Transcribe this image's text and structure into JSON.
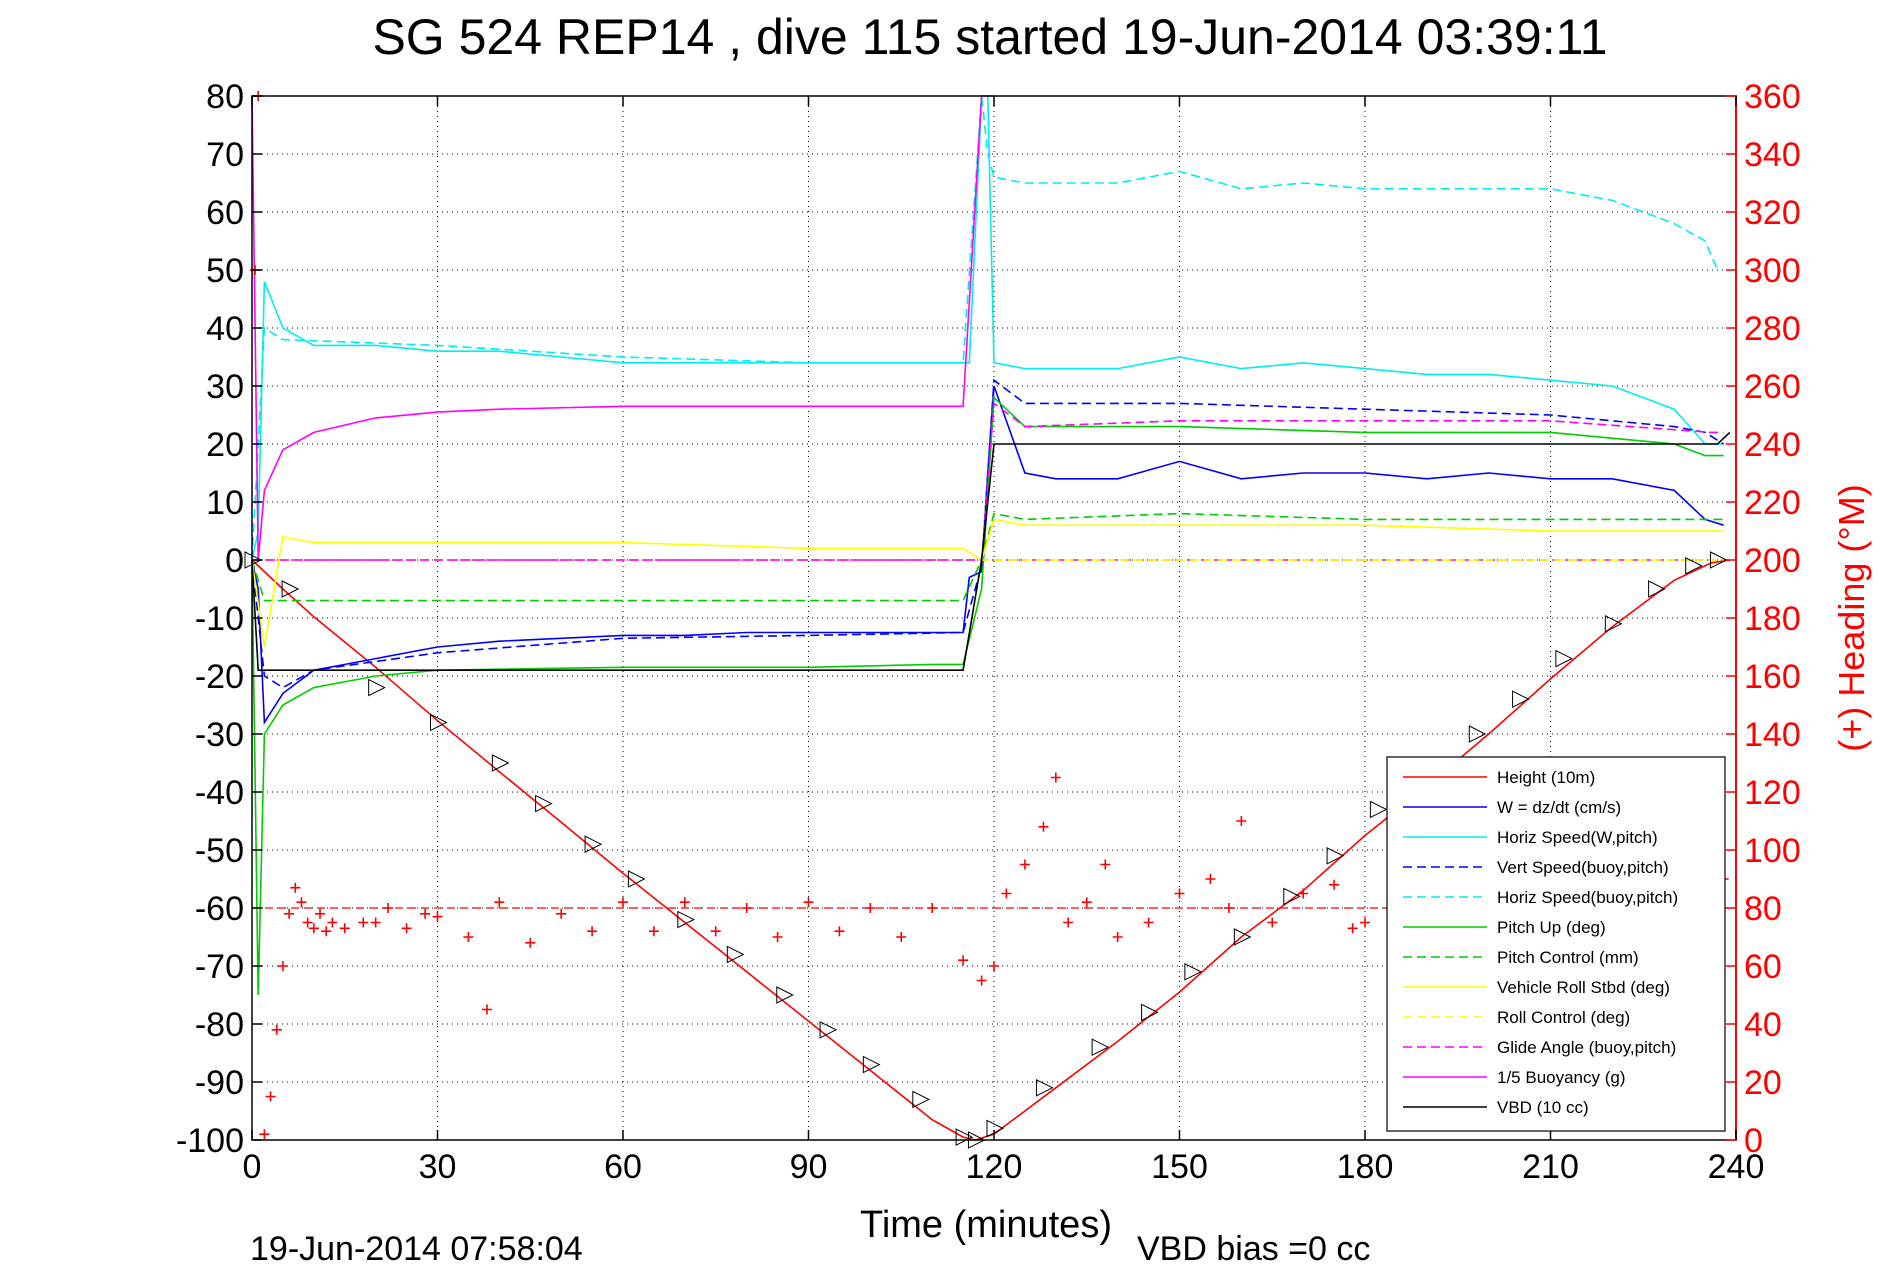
{
  "chart_data": {
    "type": "line",
    "title": "SG 524   REP14  , dive 115 started 19-Jun-2014 03:39:11",
    "xlabel": "Time (minutes)",
    "ylabel_left": "",
    "ylabel_right": "(+) Heading (°M)",
    "footer_left": "19-Jun-2014 07:58:04",
    "footer_right": "VBD bias =0 cc",
    "xlim": [
      0,
      240
    ],
    "ylim_left": [
      -100,
      80
    ],
    "ylim_right": [
      0,
      360
    ],
    "x_ticks": [
      "0",
      "30",
      "60",
      "90",
      "120",
      "150",
      "180",
      "210",
      "240"
    ],
    "y_ticks_left": [
      "80",
      "70",
      "60",
      "50",
      "40",
      "30",
      "20",
      "10",
      "0",
      "-10",
      "-20",
      "-30",
      "-40",
      "-50",
      "-60",
      "-70",
      "-80",
      "-90",
      "-100"
    ],
    "y_ticks_right": [
      "360",
      "340",
      "320",
      "300",
      "280",
      "260",
      "240",
      "220",
      "200",
      "180",
      "160",
      "140",
      "120",
      "100",
      "80",
      "60",
      "40",
      "20",
      "0"
    ],
    "grid": true,
    "legend_position": "bottom-right",
    "reference_lines": [
      {
        "axis": "left",
        "y": 0,
        "color": "#ff0000",
        "dash": "dashed"
      },
      {
        "axis": "left",
        "y": 0,
        "color": "#ff00ff",
        "dash": "dashed"
      },
      {
        "axis": "left",
        "y": -60,
        "color": "#ff0000",
        "dash": "dashed"
      }
    ],
    "series": [
      {
        "name": "Height (10m)",
        "color": "#ff0000",
        "style": "solid",
        "axis": "left",
        "x": [
          0,
          5,
          10,
          20,
          30,
          40,
          50,
          60,
          70,
          80,
          90,
          100,
          110,
          115,
          117,
          120,
          125,
          130,
          140,
          150,
          160,
          170,
          180,
          190,
          200,
          210,
          220,
          230,
          236,
          239
        ],
        "y": [
          0,
          -5,
          -9.8,
          -18.5,
          -27.7,
          -36.5,
          -45.2,
          -54,
          -62.5,
          -71,
          -79.5,
          -88,
          -96.5,
          -99.5,
          -100,
          -99,
          -95,
          -91,
          -83,
          -74.5,
          -65,
          -57,
          -47.5,
          -39,
          -30,
          -20.5,
          -11.5,
          -3.5,
          -0.5,
          0
        ]
      },
      {
        "name": "W = dz/dt (cm/s)",
        "color": "#0000ff",
        "style": "solid",
        "axis": "left",
        "x": [
          0,
          1,
          2,
          5,
          10,
          20,
          30,
          40,
          50,
          60,
          70,
          80,
          90,
          100,
          110,
          115,
          116,
          118,
          119,
          120,
          125,
          130,
          140,
          150,
          160,
          170,
          180,
          190,
          200,
          210,
          220,
          230,
          235,
          238
        ],
        "y": [
          0,
          -5,
          -28,
          -23,
          -19,
          -17,
          -15,
          -14,
          -13.5,
          -13,
          -13,
          -12.5,
          -12.5,
          -12.5,
          -12.5,
          -12.5,
          -3,
          -2,
          15,
          30,
          15,
          14,
          14,
          17,
          14,
          15,
          15,
          14,
          15,
          14,
          14,
          12,
          7,
          6
        ]
      },
      {
        "name": "Horiz Speed(W,pitch)",
        "color": "#00eeee",
        "style": "solid",
        "axis": "left",
        "x": [
          0,
          1,
          2,
          5,
          10,
          20,
          30,
          40,
          50,
          60,
          70,
          80,
          90,
          100,
          110,
          115,
          116,
          118,
          119,
          120,
          125,
          130,
          140,
          150,
          160,
          170,
          180,
          190,
          200,
          210,
          220,
          230,
          235,
          238
        ],
        "y": [
          0,
          5,
          48,
          40,
          37,
          37,
          36,
          36,
          35,
          34,
          34,
          34,
          34,
          34,
          34,
          34,
          34,
          80,
          80,
          34,
          33,
          33,
          33,
          35,
          33,
          34,
          33,
          32,
          32,
          31,
          30,
          26,
          20,
          20
        ]
      },
      {
        "name": "Vert Speed(buoy,pitch)",
        "color": "#0000ff",
        "style": "dashed",
        "axis": "left",
        "x": [
          0,
          2,
          5,
          10,
          30,
          60,
          90,
          115,
          118,
          120,
          125,
          150,
          180,
          210,
          230,
          235,
          238
        ],
        "y": [
          0,
          -20,
          -22,
          -19,
          -16,
          -13.5,
          -13,
          -12.5,
          -1,
          31,
          27,
          27,
          26,
          25,
          23,
          22,
          20
        ]
      },
      {
        "name": "Horiz Speed(buoy,pitch)",
        "color": "#00eeee",
        "style": "dashed",
        "axis": "left",
        "x": [
          0,
          2,
          5,
          30,
          60,
          90,
          115,
          118,
          119,
          120,
          125,
          140,
          150,
          160,
          170,
          180,
          190,
          200,
          210,
          220,
          225,
          230,
          235,
          237
        ],
        "y": [
          0,
          40,
          38,
          37,
          35,
          34,
          34,
          80,
          70,
          66,
          65,
          65,
          67,
          64,
          65,
          64,
          64,
          64,
          64,
          62,
          60,
          58,
          55,
          50
        ]
      },
      {
        "name": "Pitch Up (deg)",
        "color": "#00cc00",
        "style": "solid",
        "axis": "left",
        "x": [
          0,
          1,
          2,
          5,
          10,
          20,
          30,
          60,
          90,
          110,
          115,
          118,
          120,
          125,
          150,
          180,
          210,
          230,
          235,
          238
        ],
        "y": [
          0,
          -75,
          -30,
          -25,
          -22,
          -20,
          -19,
          -18.5,
          -18.5,
          -18,
          -18,
          -5,
          28,
          23,
          23,
          22,
          22,
          20,
          18,
          18
        ]
      },
      {
        "name": "Pitch Control (mm)",
        "color": "#00cc00",
        "style": "dashed",
        "axis": "left",
        "x": [
          0,
          2,
          115,
          118,
          120,
          125,
          150,
          180,
          210,
          236,
          238
        ],
        "y": [
          0,
          -7,
          -7,
          0,
          8,
          7,
          8,
          7,
          7,
          7,
          7
        ]
      },
      {
        "name": "Vehicle Roll Stbd (deg)",
        "color": "#ffff00",
        "style": "solid",
        "axis": "left",
        "x": [
          0,
          2,
          5,
          10,
          30,
          60,
          90,
          115,
          118,
          120,
          125,
          150,
          180,
          210,
          236,
          238
        ],
        "y": [
          0,
          -15,
          4,
          3,
          3,
          3,
          2,
          2,
          0,
          7,
          6,
          6,
          6,
          5,
          5,
          5
        ]
      },
      {
        "name": "Roll Control (deg)",
        "color": "#ffff00",
        "style": "dashed",
        "axis": "left",
        "x": [
          0,
          2,
          115,
          118,
          120,
          236,
          238
        ],
        "y": [
          0,
          0,
          0,
          0,
          0,
          0,
          0
        ]
      },
      {
        "name": "Glide Angle (buoy,pitch)",
        "color": "#ff00ff",
        "style": "dashed",
        "axis": "left",
        "x": [
          0,
          115,
          118,
          120,
          125,
          150,
          180,
          210,
          236,
          238
        ],
        "y": [
          0,
          0,
          0,
          27,
          23,
          24,
          24,
          24,
          22,
          22
        ]
      },
      {
        "name": "1/5 Buoyancy (g)",
        "color": "#ff00ff",
        "style": "solid",
        "axis": "left",
        "x": [
          0,
          1,
          2,
          5,
          10,
          20,
          30,
          40,
          60,
          90,
          115,
          118,
          119,
          120
        ],
        "y": [
          80,
          0,
          12,
          19,
          22,
          24.5,
          25.5,
          26,
          26.5,
          26.5,
          26.5,
          80,
          80,
          80
        ]
      },
      {
        "name": "VBD (10 cc)",
        "color": "#000000",
        "style": "solid",
        "axis": "left",
        "x": [
          0,
          1,
          2,
          115,
          118,
          120,
          236,
          237,
          239
        ],
        "y": [
          0,
          -19,
          -19,
          -19,
          0,
          20,
          20,
          20,
          22
        ]
      },
      {
        "name": "Heading (°M)",
        "color": "#ff0000",
        "style": "markers",
        "marker": "+",
        "axis": "right",
        "x": [
          0.5,
          1,
          2,
          3,
          4,
          5,
          6,
          7,
          8,
          9,
          10,
          11,
          12,
          13,
          15,
          18,
          20,
          22,
          25,
          28,
          30,
          35,
          38,
          40,
          45,
          50,
          55,
          60,
          65,
          70,
          75,
          80,
          85,
          90,
          95,
          100,
          105,
          110,
          115,
          118,
          120,
          122,
          125,
          128,
          130,
          132,
          135,
          138,
          140,
          145,
          150,
          155,
          158,
          160,
          165,
          170,
          175,
          178,
          180,
          185,
          188,
          190,
          195,
          200,
          205,
          210,
          215,
          220,
          225,
          230,
          235,
          238
        ],
        "y": [
          300,
          360,
          2,
          15,
          38,
          60,
          78,
          87,
          82,
          75,
          73,
          78,
          72,
          75,
          73,
          75,
          75,
          80,
          73,
          78,
          77,
          70,
          45,
          82,
          68,
          78,
          72,
          82,
          72,
          82,
          72,
          80,
          70,
          82,
          72,
          80,
          70,
          80,
          62,
          55,
          60,
          85,
          95,
          108,
          125,
          75,
          82,
          95,
          70,
          75,
          85,
          90,
          80,
          110,
          75,
          85,
          88,
          73,
          75,
          80,
          76,
          85,
          90,
          70,
          80,
          75,
          80,
          82,
          78,
          82,
          85,
          90
        ]
      },
      {
        "name": "Height markers",
        "color": "#000000",
        "style": "markers",
        "marker": "triangle",
        "axis": "left",
        "x": [
          0,
          6,
          20,
          30,
          40,
          47,
          55,
          62,
          70,
          78,
          86,
          93,
          100,
          108,
          115,
          117,
          120,
          128,
          137,
          145,
          152,
          160,
          168,
          175,
          182,
          190,
          198,
          205,
          212,
          220,
          227,
          233,
          237
        ],
        "y": [
          0,
          -5,
          -22,
          -28,
          -35,
          -42,
          -49,
          -55,
          -62,
          -68,
          -75,
          -81,
          -87,
          -93,
          -99.5,
          -100,
          -98,
          -91,
          -84,
          -78,
          -71,
          -65,
          -58,
          -51,
          -43,
          -37,
          -30,
          -24,
          -17,
          -11,
          -5,
          -1,
          0
        ]
      }
    ]
  }
}
